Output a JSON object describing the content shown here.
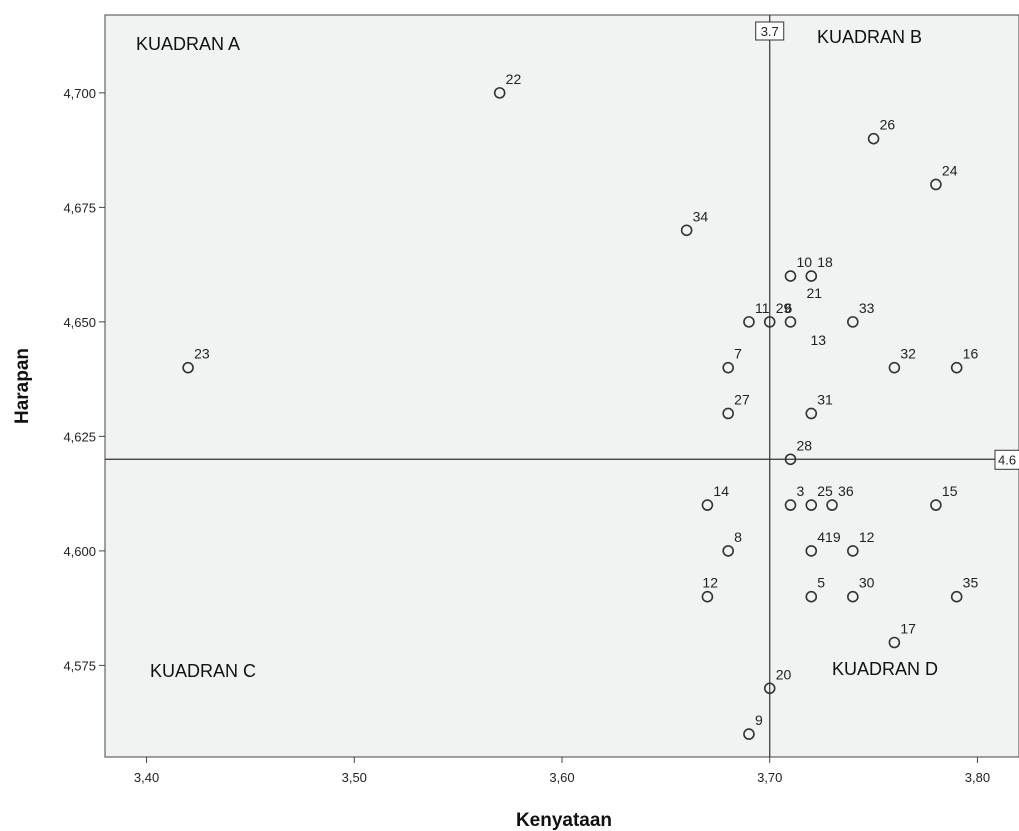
{
  "chart_data": {
    "type": "scatter",
    "xlabel": "Kenyataan",
    "ylabel": "Harapan",
    "xlim": [
      3.38,
      3.82
    ],
    "ylim": [
      4.555,
      4.717
    ],
    "x_ticks": [
      3.4,
      3.5,
      3.6,
      3.7,
      3.8
    ],
    "x_tick_labels": [
      "3,40",
      "3,50",
      "3,60",
      "3,70",
      "3,80"
    ],
    "y_ticks": [
      4.575,
      4.6,
      4.625,
      4.65,
      4.675,
      4.7
    ],
    "y_tick_labels": [
      "4,575",
      "4,600",
      "4,625",
      "4,650",
      "4,675",
      "4,700"
    ],
    "grid": false,
    "background_color": "#f1f3f2",
    "marker_color": "#333333",
    "reference_lines": {
      "vertical": {
        "value": 3.7,
        "label": "3.7"
      },
      "horizontal": {
        "value": 4.62,
        "label": "4.6"
      }
    },
    "quadrants": {
      "a": "KUADRAN A",
      "b": "KUADRAN B",
      "c": "KUADRAN C",
      "d": "KUADRAN D"
    },
    "points": [
      {
        "label": "22",
        "x": 3.57,
        "y": 4.7
      },
      {
        "label": "26",
        "x": 3.75,
        "y": 4.69
      },
      {
        "label": "24",
        "x": 3.78,
        "y": 4.68
      },
      {
        "label": "34",
        "x": 3.66,
        "y": 4.67
      },
      {
        "label": "10",
        "x": 3.71,
        "y": 4.66
      },
      {
        "label": "18",
        "x": 3.72,
        "y": 4.66
      },
      {
        "label": "11",
        "x": 3.69,
        "y": 4.65
      },
      {
        "label": "29",
        "x": 3.7,
        "y": 4.65
      },
      {
        "label": "6",
        "x": 3.71,
        "y": 4.65
      },
      {
        "label": "21",
        "x": 3.71,
        "y": 4.65
      },
      {
        "label": "13",
        "x": 3.71,
        "y": 4.65
      },
      {
        "label": "33",
        "x": 3.74,
        "y": 4.65
      },
      {
        "label": "23",
        "x": 3.42,
        "y": 4.64
      },
      {
        "label": "7",
        "x": 3.68,
        "y": 4.64
      },
      {
        "label": "32",
        "x": 3.76,
        "y": 4.64
      },
      {
        "label": "16",
        "x": 3.79,
        "y": 4.64
      },
      {
        "label": "27",
        "x": 3.68,
        "y": 4.63
      },
      {
        "label": "31",
        "x": 3.72,
        "y": 4.63
      },
      {
        "label": "28",
        "x": 3.71,
        "y": 4.62
      },
      {
        "label": "14",
        "x": 3.67,
        "y": 4.61
      },
      {
        "label": "3",
        "x": 3.71,
        "y": 4.61
      },
      {
        "label": "25",
        "x": 3.72,
        "y": 4.61
      },
      {
        "label": "36",
        "x": 3.73,
        "y": 4.61
      },
      {
        "label": "15",
        "x": 3.78,
        "y": 4.61
      },
      {
        "label": "8",
        "x": 3.68,
        "y": 4.6
      },
      {
        "label": "4",
        "x": 3.72,
        "y": 4.6
      },
      {
        "label": "19",
        "x": 3.72,
        "y": 4.6
      },
      {
        "label": "12",
        "x": 3.74,
        "y": 4.6
      },
      {
        "label": "1",
        "x": 3.67,
        "y": 4.59
      },
      {
        "label": "2",
        "x": 3.67,
        "y": 4.59
      },
      {
        "label": "5",
        "x": 3.72,
        "y": 4.59
      },
      {
        "label": "30",
        "x": 3.74,
        "y": 4.59
      },
      {
        "label": "35",
        "x": 3.79,
        "y": 4.59
      },
      {
        "label": "17",
        "x": 3.76,
        "y": 4.58
      },
      {
        "label": "20",
        "x": 3.7,
        "y": 4.57
      },
      {
        "label": "9",
        "x": 3.69,
        "y": 4.56
      }
    ]
  }
}
